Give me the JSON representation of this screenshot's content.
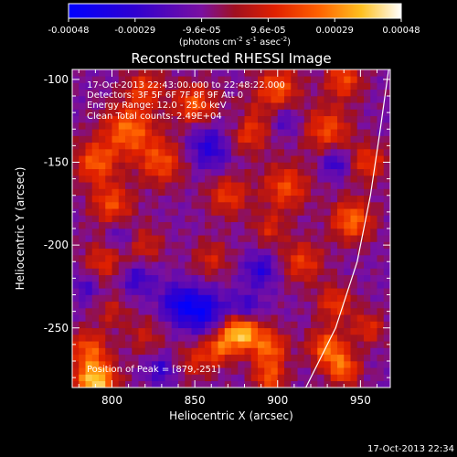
{
  "colorbar": {
    "ticks": [
      "-0.00048",
      "-0.00029",
      "-9.6e-05",
      "9.6e-05",
      "0.00029",
      "0.00048"
    ],
    "unit_parts": [
      "(photons cm",
      "-2",
      " s",
      "-1",
      " asec",
      "-2",
      ")"
    ]
  },
  "chart_data": {
    "type": "heatmap",
    "title": "Reconstructed RHESSI Image",
    "xlabel": "Heliocentric X (arcsec)",
    "ylabel": "Heliocentric Y (arcsec)",
    "xlim": [
      776,
      968
    ],
    "ylim": [
      -286,
      -94
    ],
    "xticks": [
      800,
      850,
      900,
      950
    ],
    "yticks": [
      -100,
      -150,
      -200,
      -250
    ],
    "xtick_labels": [
      "800",
      "850",
      "900",
      "950"
    ],
    "ytick_labels": [
      "-100",
      "-150",
      "-200",
      "-250"
    ],
    "annotations": [
      "17-Oct-2013 22:43:00.000 to 22:48:22.000",
      "Detectors: 3F 5F 6F 7F 8F 9F  Att 0",
      "Energy Range: 12.0 - 25.0 keV",
      "Clean    Total counts: 2.49E+04"
    ],
    "peak_label": "Position of Peak = [879,-251]",
    "peak": [
      879,
      -251
    ],
    "limb_curve": [
      [
        917,
        -286
      ],
      [
        935,
        -250
      ],
      [
        948,
        -210
      ],
      [
        956,
        -170
      ],
      [
        962,
        -130
      ],
      [
        967,
        -94
      ]
    ],
    "blobs": [
      [
        790,
        -282,
        9,
        1.6
      ],
      [
        786,
        -262,
        8,
        0.9
      ],
      [
        878,
        -251,
        8,
        1.7
      ],
      [
        865,
        -262,
        7,
        0.9
      ],
      [
        895,
        -262,
        8,
        1.0
      ],
      [
        895,
        -280,
        7,
        0.9
      ],
      [
        930,
        -262,
        8,
        1.1
      ],
      [
        940,
        -275,
        7,
        1.0
      ],
      [
        955,
        -250,
        7,
        0.7
      ],
      [
        810,
        -130,
        11,
        1.1
      ],
      [
        790,
        -150,
        9,
        1.0
      ],
      [
        800,
        -175,
        9,
        0.9
      ],
      [
        830,
        -150,
        10,
        0.9
      ],
      [
        850,
        -115,
        9,
        1.0
      ],
      [
        870,
        -170,
        9,
        0.8
      ],
      [
        880,
        -130,
        10,
        1.0
      ],
      [
        900,
        -105,
        9,
        1.0
      ],
      [
        905,
        -165,
        10,
        0.9
      ],
      [
        930,
        -130,
        10,
        0.9
      ],
      [
        945,
        -185,
        9,
        1.1
      ],
      [
        955,
        -150,
        8,
        0.8
      ],
      [
        915,
        -210,
        9,
        0.8
      ],
      [
        935,
        -235,
        8,
        0.8
      ],
      [
        795,
        -210,
        9,
        0.7
      ],
      [
        820,
        -200,
        8,
        0.6
      ],
      [
        860,
        -208,
        8,
        0.6
      ],
      [
        850,
        -270,
        8,
        0.6
      ],
      [
        820,
        -255,
        8,
        0.5
      ],
      [
        800,
        -240,
        7,
        0.5
      ],
      [
        940,
        -100,
        8,
        0.9
      ],
      [
        820,
        -105,
        8,
        0.8
      ],
      [
        895,
        -190,
        7,
        0.6
      ]
    ],
    "cold_spots": [
      [
        860,
        -140,
        10,
        -0.8
      ],
      [
        875,
        -125,
        6,
        -0.6
      ],
      [
        855,
        -240,
        9,
        -1.0
      ],
      [
        880,
        -240,
        7,
        -0.9
      ],
      [
        840,
        -235,
        8,
        -0.8
      ],
      [
        935,
        -150,
        6,
        -0.7
      ],
      [
        815,
        -220,
        7,
        -0.6
      ],
      [
        890,
        -215,
        7,
        -0.7
      ],
      [
        805,
        -195,
        6,
        -0.5
      ],
      [
        905,
        -125,
        6,
        -0.5
      ],
      [
        830,
        -275,
        6,
        -0.6
      ],
      [
        785,
        -225,
        6,
        -0.5
      ]
    ]
  },
  "timestamp": "17-Oct-2013 22:34"
}
